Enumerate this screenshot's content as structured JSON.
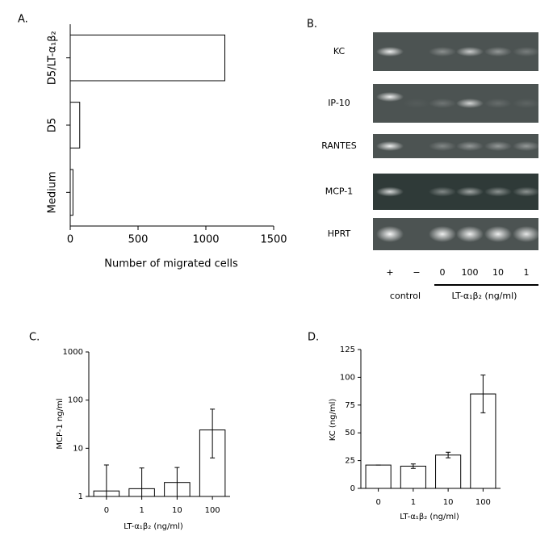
{
  "chart_data": [
    {
      "type": "bar",
      "label": "A.",
      "orientation": "horizontal",
      "categories": [
        "D5/LT-α₁β₂",
        "D5",
        "Medium"
      ],
      "values": [
        1140,
        70,
        20
      ],
      "xlim": [
        0,
        1500
      ],
      "xticks": [
        0,
        500,
        1000,
        1500
      ],
      "x_label": "Number of migrated cells",
      "color": "#ffffff"
    },
    {
      "type": "bar",
      "label": "C.",
      "log_scale": true,
      "categories": [
        "0",
        "1",
        "10",
        "100"
      ],
      "values": [
        1.3,
        1.45,
        1.95,
        24
      ],
      "error_minus": [
        3.2,
        2.45,
        2.05,
        17.7
      ],
      "error_plus": [
        3.2,
        2.45,
        2.05,
        41
      ],
      "ylim": [
        1,
        1000
      ],
      "yticks": [
        1,
        10,
        100,
        1000
      ],
      "y_label": "MCP-1 ng/ml",
      "x_label": "LT-α₁β₂ (ng/ml)",
      "color": "#ffffff"
    },
    {
      "type": "bar",
      "label": "D.",
      "categories": [
        "0",
        "1",
        "10",
        "100"
      ],
      "values": [
        21,
        20,
        30,
        85
      ],
      "error_minus": [
        0,
        2,
        2.5,
        17
      ],
      "error_plus": [
        0,
        2,
        2.5,
        17
      ],
      "ylim": [
        0,
        125
      ],
      "yticks": [
        0,
        25,
        50,
        75,
        100,
        125
      ],
      "y_label": "KC (ng/ml)",
      "x_label": "LT-α₁β₂ (ng/ml)",
      "color": "#ffffff"
    }
  ],
  "gel": {
    "label": "B.",
    "rows": [
      "KC",
      "IP-10",
      "RANTES",
      "MCP-1",
      "HPRT"
    ],
    "lanes": [
      "+",
      "−",
      "0",
      "100",
      "10",
      "1"
    ],
    "control": "control",
    "treatment": "LT-α₁β₂ (ng/ml)"
  }
}
